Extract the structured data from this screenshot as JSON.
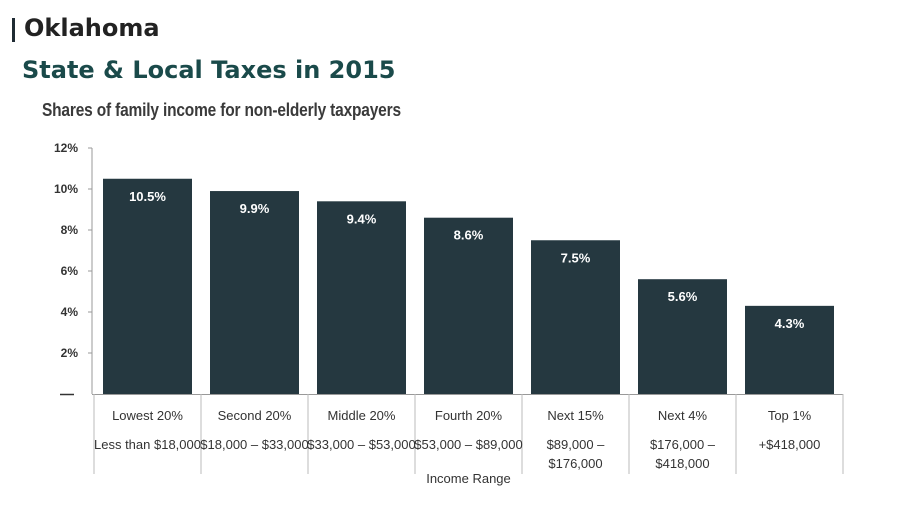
{
  "header": {
    "state": "Oklahoma",
    "title": "State & Local Taxes in 2015"
  },
  "chart_data": {
    "type": "bar",
    "subtitle": "Shares of family income for non-elderly taxpayers",
    "xlabel": "Income Range",
    "ylabel": "",
    "ylim": [
      0,
      12
    ],
    "yticks": [
      "12%",
      "10%",
      "8%",
      "6%",
      "4%",
      "2%"
    ],
    "categories": [
      "Lowest 20%",
      "Second 20%",
      "Middle 20%",
      "Fourth 20%",
      "Next 15%",
      "Next 4%",
      "Top 1%"
    ],
    "ranges": [
      [
        "Less than $18,000"
      ],
      [
        "$18,000 – $33,000"
      ],
      [
        "$33,000 – $53,000"
      ],
      [
        "$53,000 – $89,000"
      ],
      [
        "$89,000 –",
        "$176,000"
      ],
      [
        "$176,000 –",
        "$418,000"
      ],
      [
        "+$418,000"
      ]
    ],
    "values": [
      10.5,
      9.9,
      9.4,
      8.6,
      7.5,
      5.6,
      4.3
    ],
    "value_labels": [
      "10.5%",
      "9.9%",
      "9.4%",
      "8.6%",
      "7.5%",
      "5.6%",
      "4.3%"
    ],
    "bar_color": "#253840",
    "grid": false
  }
}
